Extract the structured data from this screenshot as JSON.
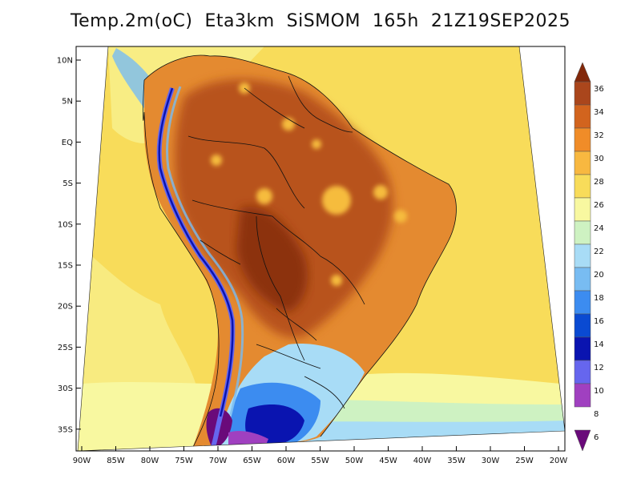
{
  "title": "Temp.2m(oC)  Eta3km  SiSMOM  165h  21Z19SEP2025",
  "map": {
    "variable": "Temp.2m",
    "units": "oC",
    "model": "Eta3km SiSMOM",
    "forecast_hour": "165h",
    "valid_time": "21Z19SEP2025",
    "region": "South America"
  },
  "lat_labels": [
    "10N",
    "5N",
    "EQ",
    "5S",
    "10S",
    "15S",
    "20S",
    "25S",
    "30S",
    "35S"
  ],
  "lon_labels": [
    "90W",
    "85W",
    "80W",
    "75W",
    "70W",
    "65W",
    "60W",
    "55W",
    "50W",
    "45W",
    "40W",
    "35W",
    "30W",
    "25W",
    "20W"
  ],
  "colorbar": {
    "labels": [
      "6",
      "8",
      "10",
      "12",
      "14",
      "16",
      "18",
      "20",
      "22",
      "24",
      "26",
      "28",
      "30",
      "32",
      "34",
      "36"
    ],
    "colors": [
      "#6a0a7a",
      "#a040c0",
      "#6666ee",
      "#0a14b0",
      "#0a4ad2",
      "#3c8cf0",
      "#78bcf2",
      "#a8dcf6",
      "#cef2c2",
      "#f8f8a0",
      "#f8dc5a",
      "#f8b840",
      "#f08c28",
      "#d2641e",
      "#aa461c",
      "#82280a"
    ]
  }
}
